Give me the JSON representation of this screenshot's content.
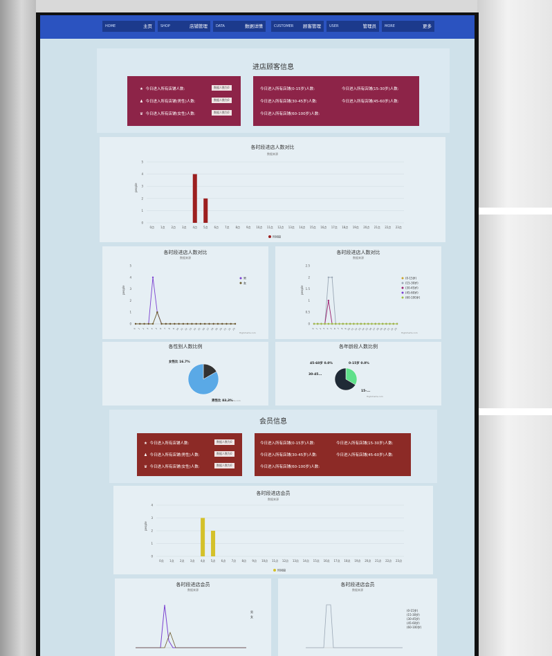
{
  "nav": [
    {
      "en": "HOME",
      "zh": "主页"
    },
    {
      "en": "SHOP",
      "zh": "店铺管理"
    },
    {
      "en": "DATA",
      "zh": "数据详情"
    },
    {
      "en": "CUSTOMER",
      "zh": "顾客管理"
    },
    {
      "en": "USER",
      "zh": "管理员"
    },
    {
      "en": "MORE",
      "zh": "更多"
    }
  ],
  "customer_section": {
    "title": "进店顾客信息",
    "left_rows": [
      {
        "icon": "★",
        "text": "今日进入所有店铺人数:"
      },
      {
        "icon": "♟",
        "text": "今日进入所有店铺(男性)人数:"
      },
      {
        "icon": "♛",
        "text": "今日进入所有店铺(女性)人数:"
      }
    ],
    "badge": "数据人数为0",
    "right_rows": [
      {
        "text": "今日进入所有店铺(0-15岁)人数:"
      },
      {
        "text": "今日进入所有店铺(15-30岁)人数:"
      },
      {
        "text": "今日进入所有店铺(30-45岁)人数:"
      },
      {
        "text": "今日进入所有店铺(45-60岁)人数:"
      },
      {
        "text": "今日进入所有店铺(60-100岁)人数:"
      }
    ]
  },
  "chart_data": [
    {
      "type": "bar",
      "title": "各时段进店人数对比",
      "subtitle": "数据来源",
      "ylabel": "people",
      "categories": [
        "0点",
        "1点",
        "2点",
        "3点",
        "4点",
        "5点",
        "6点",
        "7点",
        "8点",
        "9点",
        "10点",
        "11点",
        "12点",
        "13点",
        "14点",
        "15点",
        "16点",
        "17点",
        "18点",
        "19点",
        "20点",
        "21点",
        "22点",
        "23点"
      ],
      "values": [
        0,
        0,
        0,
        0,
        4,
        2,
        0,
        0,
        0,
        0,
        0,
        0,
        0,
        0,
        0,
        0,
        0,
        0,
        0,
        0,
        0,
        0,
        0,
        0
      ],
      "ylim": [
        0,
        5
      ],
      "legend": "时间段",
      "color": "#9c1f1f"
    },
    {
      "type": "line",
      "title": "各时段进店人数对比",
      "subtitle": "数据来源",
      "ylabel": "people",
      "categories": [
        "0",
        "1",
        "2",
        "3",
        "4",
        "5",
        "6",
        "7",
        "8",
        "9",
        "10",
        "11",
        "12",
        "13",
        "14",
        "15",
        "16",
        "17",
        "18",
        "19",
        "20",
        "21",
        "22",
        "23"
      ],
      "series": [
        {
          "name": "男",
          "values": [
            0,
            0,
            0,
            0,
            4,
            1,
            0,
            0,
            0,
            0,
            0,
            0,
            0,
            0,
            0,
            0,
            0,
            0,
            0,
            0,
            0,
            0,
            0,
            0
          ],
          "color": "#7a3fd0"
        },
        {
          "name": "女",
          "values": [
            0,
            0,
            0,
            0,
            0,
            1,
            0,
            0,
            0,
            0,
            0,
            0,
            0,
            0,
            0,
            0,
            0,
            0,
            0,
            0,
            0,
            0,
            0,
            0
          ],
          "color": "#6b5a2a"
        }
      ],
      "ylim": [
        0,
        5
      ],
      "credit": "Highcharts.com"
    },
    {
      "type": "line",
      "title": "各时段进店人数对比",
      "subtitle": "数据来源",
      "ylabel": "people",
      "categories": [
        "0",
        "1",
        "2",
        "3",
        "4",
        "5",
        "6",
        "7",
        "8",
        "9",
        "10",
        "11",
        "12",
        "13",
        "14",
        "15",
        "16",
        "17",
        "18",
        "19",
        "20",
        "21",
        "22",
        "23"
      ],
      "series": [
        {
          "name": "(0-15岁)",
          "values": [
            0,
            0,
            0,
            0,
            0,
            0,
            0,
            0,
            0,
            0,
            0,
            0,
            0,
            0,
            0,
            0,
            0,
            0,
            0,
            0,
            0,
            0,
            0,
            0
          ],
          "color": "#c9a227"
        },
        {
          "name": "(15-30岁)",
          "values": [
            0,
            0,
            0,
            0,
            2,
            2,
            0,
            0,
            0,
            0,
            0,
            0,
            0,
            0,
            0,
            0,
            0,
            0,
            0,
            0,
            0,
            0,
            0,
            0
          ],
          "color": "#9aa7b5"
        },
        {
          "name": "(30-45岁)",
          "values": [
            0,
            0,
            0,
            0,
            1,
            0,
            0,
            0,
            0,
            0,
            0,
            0,
            0,
            0,
            0,
            0,
            0,
            0,
            0,
            0,
            0,
            0,
            0,
            0
          ],
          "color": "#9c1f6e"
        },
        {
          "name": "(45-60岁)",
          "values": [
            0,
            0,
            0,
            0,
            0,
            0,
            0,
            0,
            0,
            0,
            0,
            0,
            0,
            0,
            0,
            0,
            0,
            0,
            0,
            0,
            0,
            0,
            0,
            0
          ],
          "color": "#7a3fd0"
        },
        {
          "name": "(60-100岁)",
          "values": [
            0,
            0,
            0,
            0,
            0,
            0,
            0,
            0,
            0,
            0,
            0,
            0,
            0,
            0,
            0,
            0,
            0,
            0,
            0,
            0,
            0,
            0,
            0,
            0
          ],
          "color": "#a0c040"
        }
      ],
      "ylim": [
        0,
        2.5
      ],
      "credit": "Highcharts.com"
    },
    {
      "type": "pie",
      "title": "各性别人数比例",
      "slices": [
        {
          "label": "女性比 16.7%",
          "value": 16.7,
          "color": "#333333"
        },
        {
          "label": "男性比 83.3%",
          "value": 83.3,
          "color": "#5aa9e6"
        }
      ],
      "credit": "Highcharts.com"
    },
    {
      "type": "pie",
      "title": "各年龄段人数比例",
      "slices": [
        {
          "label": "45-60岁 0.0%",
          "value": 0.1,
          "color": "#7a3fd0"
        },
        {
          "label": "0-15岁 0.0%",
          "value": 0.1,
          "color": "#c9a227"
        },
        {
          "label": "30-45...",
          "value": 33.3,
          "color": "#5fe08a"
        },
        {
          "label": "15-...",
          "value": 66.6,
          "color": "#1f2a36"
        }
      ],
      "credit": "Highcharts.com"
    },
    {
      "type": "bar",
      "title": "各时段进店会员",
      "subtitle": "数据来源",
      "ylabel": "people",
      "categories": [
        "0点",
        "1点",
        "2点",
        "3点",
        "4点",
        "5点",
        "6点",
        "7点",
        "8点",
        "9点",
        "10点",
        "11点",
        "12点",
        "13点",
        "14点",
        "15点",
        "16点",
        "17点",
        "18点",
        "19点",
        "20点",
        "21点",
        "22点",
        "23点"
      ],
      "values": [
        0,
        0,
        0,
        0,
        3,
        2,
        0,
        0,
        0,
        0,
        0,
        0,
        0,
        0,
        0,
        0,
        0,
        0,
        0,
        0,
        0,
        0,
        0,
        0
      ],
      "ylim": [
        0,
        4
      ],
      "legend": "时间段",
      "color": "#d4c12a"
    }
  ],
  "member_section": {
    "title": "会员信息",
    "left_rows": [
      {
        "icon": "★",
        "text": "今日进入所有店铺人数:"
      },
      {
        "icon": "♟",
        "text": "今日进入所有店铺(男性)人数:"
      },
      {
        "icon": "♛",
        "text": "今日进入所有店铺(女性)人数:"
      }
    ],
    "badge": "数据人数为0",
    "right_rows": [
      {
        "text": "今日进入所有店铺(0-15岁)人数:"
      },
      {
        "text": "今日进入所有店铺(15-30岁)人数:"
      },
      {
        "text": "今日进入所有店铺(30-45岁)人数:"
      },
      {
        "text": "今日进入所有店铺(45-60岁)人数:"
      },
      {
        "text": "今日进入所有店铺(60-100岁)人数:"
      }
    ]
  },
  "bottom_panels": [
    {
      "title": "各时段进店会员",
      "subtitle": "数据来源",
      "legend": [
        "男",
        "女"
      ]
    },
    {
      "title": "各时段进店会员",
      "subtitle": "数据来源",
      "legend": [
        "(0-15岁)",
        "(15-30岁)",
        "(30-45岁)",
        "(45-60岁)",
        "(60-100岁)"
      ]
    }
  ]
}
